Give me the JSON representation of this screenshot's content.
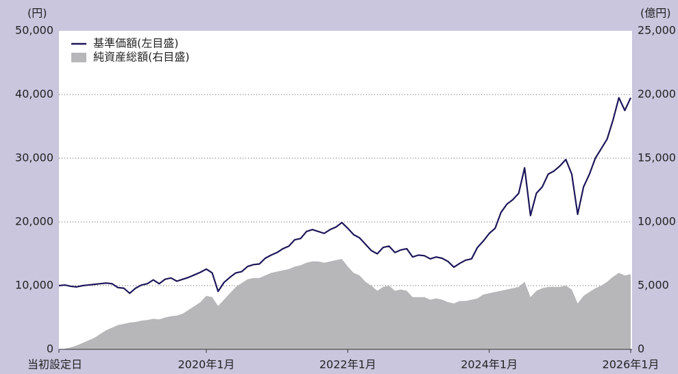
{
  "chart_data": {
    "type": "line",
    "y_unit": "(円)",
    "y2_unit": "(億円)",
    "x": [
      "2017-12",
      "2018-01",
      "2018-02",
      "2018-03",
      "2018-04",
      "2018-05",
      "2018-06",
      "2018-07",
      "2018-08",
      "2018-09",
      "2018-10",
      "2018-11",
      "2018-12",
      "2019-01",
      "2019-02",
      "2019-03",
      "2019-04",
      "2019-05",
      "2019-06",
      "2019-07",
      "2019-08",
      "2019-09",
      "2019-10",
      "2019-11",
      "2019-12",
      "2020-01",
      "2020-02",
      "2020-03",
      "2020-04",
      "2020-05",
      "2020-06",
      "2020-07",
      "2020-08",
      "2020-09",
      "2020-10",
      "2020-11",
      "2020-12",
      "2021-01",
      "2021-02",
      "2021-03",
      "2021-04",
      "2021-05",
      "2021-06",
      "2021-07",
      "2021-08",
      "2021-09",
      "2021-10",
      "2021-11",
      "2021-12",
      "2022-01",
      "2022-02",
      "2022-03",
      "2022-04",
      "2022-05",
      "2022-06",
      "2022-07",
      "2022-08",
      "2022-09",
      "2022-10",
      "2022-11",
      "2022-12",
      "2023-01",
      "2023-02",
      "2023-03",
      "2023-04",
      "2023-05",
      "2023-06",
      "2023-07",
      "2023-08",
      "2023-09",
      "2023-10",
      "2023-11",
      "2023-12",
      "2024-01",
      "2024-02",
      "2024-03",
      "2024-04",
      "2024-05",
      "2024-06",
      "2024-07",
      "2024-08",
      "2024-09",
      "2024-10",
      "2024-11",
      "2024-12",
      "2025-01",
      "2025-02",
      "2025-03",
      "2025-04",
      "2025-05",
      "2025-06",
      "2025-07",
      "2025-08",
      "2025-09",
      "2025-10",
      "2025-11",
      "2025-12",
      "2026-01"
    ],
    "series": [
      {
        "name": "純資産総額(右目盛)",
        "color": "#b7b7b9",
        "kind": "area",
        "axis": "y2",
        "values": [
          0,
          50,
          150,
          300,
          500,
          700,
          900,
          1200,
          1500,
          1700,
          1900,
          2000,
          2100,
          2150,
          2250,
          2300,
          2400,
          2350,
          2500,
          2600,
          2650,
          2800,
          3100,
          3400,
          3700,
          4200,
          4100,
          3400,
          3900,
          4400,
          4900,
          5200,
          5500,
          5600,
          5600,
          5800,
          6000,
          6100,
          6200,
          6300,
          6500,
          6600,
          6800,
          6900,
          6900,
          6800,
          6900,
          7000,
          7100,
          6500,
          6000,
          5800,
          5300,
          5000,
          4600,
          4900,
          5000,
          4600,
          4700,
          4600,
          4100,
          4100,
          4100,
          3900,
          4000,
          3900,
          3700,
          3600,
          3800,
          3800,
          3900,
          4000,
          4300,
          4400,
          4500,
          4600,
          4700,
          4800,
          4900,
          5300,
          4100,
          4600,
          4800,
          4900,
          4900,
          4900,
          5000,
          4700,
          3600,
          4200,
          4500,
          4800,
          5000,
          5300,
          5700,
          6000,
          5800,
          5900
        ]
      },
      {
        "name": "基準価額(左目盛)",
        "color": "#1b1659",
        "kind": "line",
        "values": [
          10000,
          10100,
          9900,
          9800,
          10000,
          10100,
          10200,
          10300,
          10400,
          10300,
          9700,
          9600,
          8800,
          9600,
          10100,
          10300,
          10900,
          10300,
          11000,
          11200,
          10700,
          11000,
          11300,
          11700,
          12100,
          12600,
          12000,
          9100,
          10500,
          11300,
          12000,
          12200,
          13000,
          13300,
          13400,
          14300,
          14800,
          15200,
          15800,
          16200,
          17200,
          17400,
          18500,
          18800,
          18500,
          18200,
          18800,
          19200,
          19900,
          19000,
          18000,
          17500,
          16500,
          15500,
          15000,
          16000,
          16200,
          15200,
          15600,
          15800,
          14500,
          14800,
          14700,
          14200,
          14500,
          14300,
          13800,
          12900,
          13500,
          14000,
          14200,
          16000,
          17000,
          18200,
          19000,
          21500,
          22800,
          23500,
          24500,
          28500,
          21000,
          24500,
          25500,
          27500,
          28000,
          28800,
          29800,
          27500,
          21200,
          25500,
          27500,
          30000,
          31500,
          33000,
          36000,
          39500,
          37500,
          39500
        ]
      }
    ],
    "xlim": [
      "2017-12",
      "2026-01"
    ],
    "xticks": [
      {
        "value": "2017-12",
        "label": "当初設定日"
      },
      {
        "value": "2020-01",
        "label": "2020年1月"
      },
      {
        "value": "2022-01",
        "label": "2022年1月"
      },
      {
        "value": "2024-01",
        "label": "2024年1月"
      },
      {
        "value": "2026-01",
        "label": "2026年1月"
      }
    ],
    "ylim": [
      0,
      50000
    ],
    "yticks": [
      0,
      {
        "value": 10000,
        "label": "10,000"
      },
      {
        "value": 20000,
        "label": "20,000"
      },
      {
        "value": 30000,
        "label": "30,000"
      },
      {
        "value": 40000,
        "label": "40,000"
      },
      {
        "value": 50000,
        "label": "50,000"
      }
    ],
    "y2lim": [
      0,
      25000
    ],
    "y2ticks": [
      0,
      {
        "value": 5000,
        "label": "5,000"
      },
      {
        "value": 10000,
        "label": "10,000"
      },
      {
        "value": 15000,
        "label": "15,000"
      },
      {
        "value": 20000,
        "label": "20,000"
      },
      {
        "value": 25000,
        "label": "25,000"
      }
    ],
    "grid": true,
    "legend": "upper left"
  }
}
